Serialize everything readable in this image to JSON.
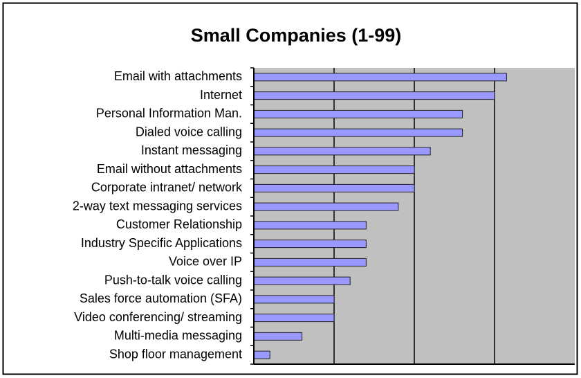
{
  "chart_data": {
    "type": "barh",
    "title": "Small Companies (1-99)",
    "categories": [
      "Email with attachments",
      "Internet",
      "Personal Information Man.",
      "Dialed voice calling",
      "Instant messaging",
      "Email without attachments",
      "Corporate intranet/ network",
      "2-way text messaging services ",
      "Customer Relationship",
      "Industry Specific Applications",
      "Voice over IP",
      "Push-to-talk voice calling",
      "Sales force automation (SFA)",
      "Video conferencing/ streaming",
      "Multi-media messaging",
      "Shop floor management"
    ],
    "values": [
      31.5,
      30,
      26,
      26,
      22,
      20,
      20,
      18,
      14,
      14,
      14,
      12,
      10,
      10,
      6,
      2
    ],
    "color": "#9999ff",
    "xlim": [
      0,
      40
    ],
    "xticks": [
      10,
      20,
      30
    ],
    "grid": true
  }
}
